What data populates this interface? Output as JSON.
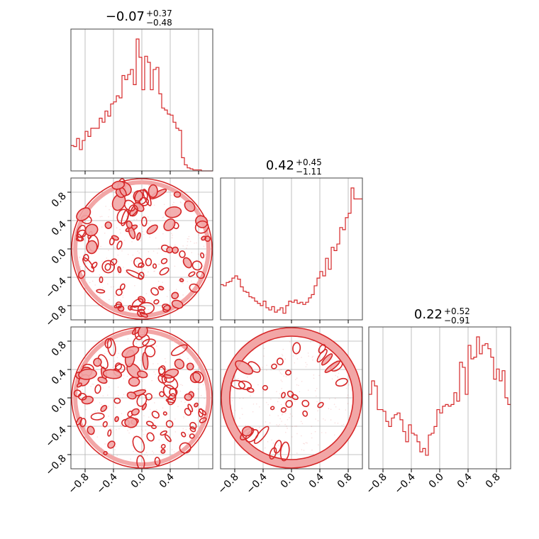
{
  "chart_data": {
    "type": "corner",
    "color": "#d62728",
    "fill_color": "#f2a6a6",
    "grid": true,
    "axis_range": [
      -1.0,
      1.0
    ],
    "tick_values": [
      -0.8,
      -0.4,
      0.0,
      0.4,
      0.8
    ],
    "tick_labels": [
      "−0.8",
      "−0.4",
      "0.0",
      "0.4",
      "0.8"
    ],
    "bottom_row_tick_values": [
      -0.8,
      -0.4,
      0.0,
      0.4
    ],
    "bottom_row_tick_labels": [
      "−0.8",
      "−0.4",
      "0.0",
      "0.4"
    ],
    "titles": [
      {
        "value": "−0.07",
        "plus": "+0.37",
        "minus": "−0.48"
      },
      {
        "value": "0.42",
        "plus": "+0.45",
        "minus": "−1.11"
      },
      {
        "value": "0.22",
        "plus": "+0.52",
        "minus": "−0.91"
      }
    ],
    "histograms": [
      {
        "bin_edges_start": -1.0,
        "bin_width": 0.04,
        "counts": [
          0.25,
          0.24,
          0.32,
          0.21,
          0.3,
          0.39,
          0.34,
          0.42,
          0.42,
          0.42,
          0.52,
          0.48,
          0.59,
          0.54,
          0.66,
          0.68,
          0.74,
          0.72,
          0.94,
          0.9,
          0.95,
          1.0,
          0.85,
          1.3,
          1.12,
          0.8,
          1.13,
          1.07,
          0.8,
          1.0,
          1.02,
          0.76,
          0.62,
          0.6,
          0.56,
          0.55,
          0.48,
          0.42,
          0.4,
          0.13,
          0.06,
          0.03,
          0.02,
          0.01,
          0.01,
          0.01,
          0.0,
          0.0,
          0.0,
          0.0
        ]
      },
      {
        "bin_edges_start": -1.0,
        "bin_width": 0.04,
        "counts": [
          0.32,
          0.31,
          0.34,
          0.35,
          0.38,
          0.4,
          0.37,
          0.3,
          0.26,
          0.25,
          0.21,
          0.2,
          0.17,
          0.15,
          0.13,
          0.17,
          0.11,
          0.09,
          0.12,
          0.07,
          0.09,
          0.11,
          0.06,
          0.13,
          0.17,
          0.16,
          0.18,
          0.15,
          0.16,
          0.14,
          0.16,
          0.2,
          0.23,
          0.31,
          0.38,
          0.44,
          0.4,
          0.56,
          0.46,
          0.66,
          0.63,
          0.69,
          0.84,
          0.82,
          0.93,
          0.97,
          1.2,
          1.1,
          1.1,
          1.1
        ]
      },
      {
        "bin_edges_start": -1.0,
        "bin_width": 0.04,
        "counts": [
          0.44,
          0.52,
          0.49,
          0.35,
          0.35,
          0.34,
          0.28,
          0.25,
          0.3,
          0.32,
          0.33,
          0.29,
          0.22,
          0.16,
          0.26,
          0.21,
          0.2,
          0.16,
          0.1,
          0.12,
          0.08,
          0.2,
          0.21,
          0.25,
          0.35,
          0.33,
          0.37,
          0.38,
          0.37,
          0.38,
          0.45,
          0.4,
          0.63,
          0.6,
          0.44,
          0.73,
          0.65,
          0.66,
          0.78,
          0.68,
          0.73,
          0.74,
          0.71,
          0.66,
          0.53,
          0.59,
          0.52,
          0.58,
          0.42,
          0.38
        ]
      }
    ],
    "panels_2d": [
      {
        "row": 1,
        "col": 0,
        "pattern": "dense-disc-upper"
      },
      {
        "row": 2,
        "col": 0,
        "pattern": "dense-disc-upper"
      },
      {
        "row": 2,
        "col": 1,
        "pattern": "ring-disc"
      }
    ]
  }
}
